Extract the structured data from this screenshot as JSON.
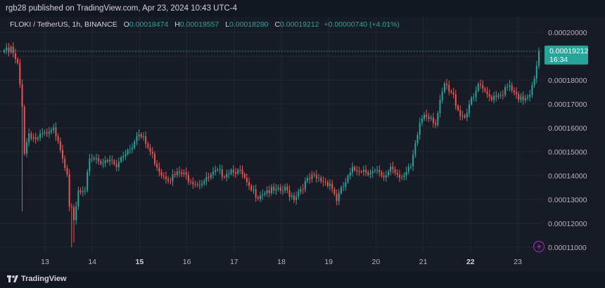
{
  "header": {
    "published_by": "rgb28 published on TradingView.com, Apr 23, 2024 10:43 UTC-4"
  },
  "legend": {
    "symbol": "FLOKI / TetherUS, 1h, BINANCE",
    "o_label": "O",
    "o_value": "0.00018474",
    "h_label": "H",
    "h_value": "0.00019557",
    "l_label": "L",
    "l_value": "0.00018280",
    "c_label": "C",
    "c_value": "0.00019212",
    "change": "+0.00000740 (+4.01%)"
  },
  "price_tag": {
    "price": "0.00019212",
    "countdown": "16:34"
  },
  "footer": {
    "brand": "TradingView"
  },
  "colors": {
    "up": "#26a69a",
    "down": "#ef5350",
    "background": "#171b26",
    "grid": "#232734",
    "axis_text": "#b2b5be",
    "accent": "#9c27b0"
  },
  "chart_data": {
    "type": "candlestick",
    "symbol": "FLOKI / TetherUS",
    "interval": "1h",
    "exchange": "BINANCE",
    "y_ticks": [
      "0.00020000",
      "0.00019000",
      "0.00018000",
      "0.00017000",
      "0.00016000",
      "0.00015000",
      "0.00014000",
      "0.00013000",
      "0.00012000",
      "0.00011000"
    ],
    "ylim": [
      0.000107,
      0.0002065
    ],
    "x_ticks": [
      {
        "label": "13",
        "bold": false
      },
      {
        "label": "14",
        "bold": false
      },
      {
        "label": "15",
        "bold": true
      },
      {
        "label": "16",
        "bold": false
      },
      {
        "label": "17",
        "bold": false
      },
      {
        "label": "18",
        "bold": false
      },
      {
        "label": "19",
        "bold": false
      },
      {
        "label": "20",
        "bold": false
      },
      {
        "label": "21",
        "bold": false
      },
      {
        "label": "22",
        "bold": true
      },
      {
        "label": "23",
        "bold": false
      }
    ],
    "last_price": 0.00019212,
    "anchors": [
      [
        0,
        0.0001925
      ],
      [
        2,
        0.0001915
      ],
      [
        3,
        0.000193
      ],
      [
        5,
        0.000188
      ],
      [
        6,
        0.000186
      ],
      [
        8,
        0.00017
      ],
      [
        9,
        0.00015
      ],
      [
        11,
        0.000158
      ],
      [
        13,
        0.000156
      ],
      [
        15,
        0.000155
      ],
      [
        17,
        0.000157
      ],
      [
        20,
        0.000157
      ],
      [
        22,
        0.000159
      ],
      [
        24,
        0.000156
      ],
      [
        26,
        0.000148
      ],
      [
        28,
        0.000142
      ],
      [
        29,
        0.000128
      ],
      [
        30,
        0.000125
      ],
      [
        31,
        0.00012
      ],
      [
        33,
        0.000133
      ],
      [
        36,
        0.000132
      ],
      [
        38,
        0.000148
      ],
      [
        42,
        0.000147
      ],
      [
        45,
        0.000145
      ],
      [
        48,
        0.000146
      ],
      [
        50,
        0.000143
      ],
      [
        52,
        0.000148
      ],
      [
        54,
        0.00015
      ],
      [
        57,
        0.000153
      ],
      [
        59,
        0.000158
      ],
      [
        62,
        0.000155
      ],
      [
        66,
        0.000148
      ],
      [
        70,
        0.000141
      ],
      [
        74,
        0.000139
      ],
      [
        78,
        0.000141
      ],
      [
        82,
        0.000139
      ],
      [
        86,
        0.000137
      ],
      [
        90,
        0.000138
      ],
      [
        94,
        0.000141
      ],
      [
        98,
        0.000141
      ],
      [
        102,
        0.000143
      ],
      [
        106,
        0.00014
      ],
      [
        109,
        0.000134
      ],
      [
        113,
        0.000132
      ],
      [
        117,
        0.000134
      ],
      [
        121,
        0.000133
      ],
      [
        125,
        0.000134
      ],
      [
        129,
        0.000131
      ],
      [
        133,
        0.000136
      ],
      [
        137,
        0.000139
      ],
      [
        141,
        0.000138
      ],
      [
        145,
        0.000137
      ],
      [
        148,
        0.00013
      ],
      [
        152,
        0.000137
      ],
      [
        155,
        0.000142
      ],
      [
        158,
        0.000143
      ],
      [
        162,
        0.000142
      ],
      [
        166,
        0.000141
      ],
      [
        169,
        0.000138
      ],
      [
        172,
        0.000144
      ],
      [
        175,
        0.000141
      ],
      [
        178,
        0.00014
      ],
      [
        181,
        0.000143
      ],
      [
        183,
        0.000152
      ],
      [
        185,
        0.000162
      ],
      [
        187,
        0.000166
      ],
      [
        190,
        0.000165
      ],
      [
        192,
        0.000162
      ],
      [
        194,
        0.00017
      ],
      [
        196,
        0.000178
      ],
      [
        198,
        0.000175
      ],
      [
        200,
        0.000173
      ],
      [
        203,
        0.000166
      ],
      [
        205,
        0.000165
      ],
      [
        207,
        0.00017
      ],
      [
        209,
        0.000172
      ],
      [
        211,
        0.000178
      ],
      [
        213,
        0.000175
      ],
      [
        216,
        0.000173
      ],
      [
        219,
        0.000174
      ],
      [
        222,
        0.000175
      ],
      [
        225,
        0.000177
      ],
      [
        227,
        0.000174
      ],
      [
        229,
        0.000171
      ],
      [
        232,
        0.000173
      ],
      [
        234,
        0.000175
      ],
      [
        236,
        0.000182
      ],
      [
        238,
        0.00019212
      ]
    ],
    "spikes": [
      {
        "index": 8,
        "low": 0.000125
      },
      {
        "index": 30,
        "low": 0.00011
      },
      {
        "index": 31,
        "low": 0.000112
      }
    ]
  }
}
